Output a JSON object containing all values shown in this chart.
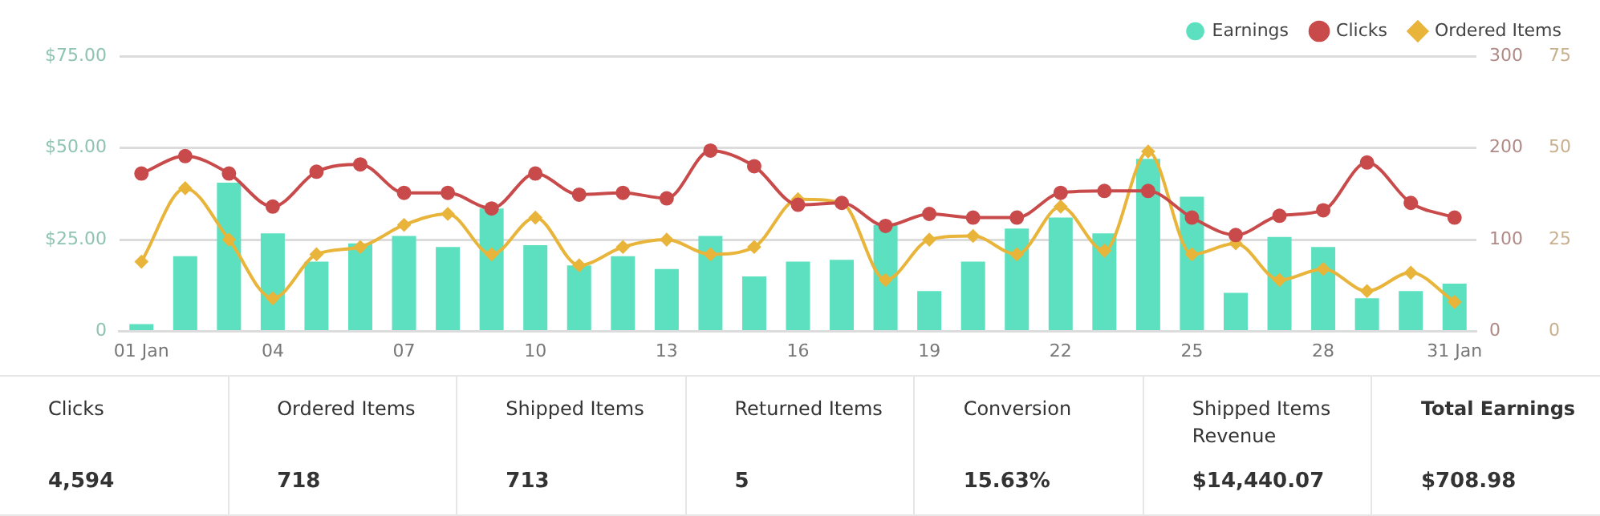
{
  "chart_data": [
    {
      "type": "bar",
      "categories": [
        "01 Jan",
        null,
        null,
        "04",
        null,
        null,
        "07",
        null,
        null,
        "10",
        null,
        null,
        "13",
        null,
        null,
        "16",
        null,
        null,
        "19",
        null,
        null,
        "22",
        null,
        null,
        "25",
        null,
        null,
        "28",
        null,
        null,
        "31 Jan"
      ],
      "series": [
        {
          "name": "Earnings",
          "type": "bar",
          "color": "#5ce0bf",
          "values": [
            2,
            20.5,
            40.5,
            26.7,
            19,
            24,
            26,
            23,
            33.5,
            23.5,
            18,
            20.5,
            17,
            26,
            15,
            19,
            19.5,
            29,
            11,
            19,
            28,
            31,
            26.7,
            47,
            36.7,
            10.5,
            25.7,
            23,
            9,
            11,
            13
          ]
        },
        {
          "name": "Clicks",
          "type": "line",
          "axis": "y2",
          "marker": "circle",
          "color": "#c94a4a",
          "values": [
            172,
            191,
            172,
            136,
            174,
            182,
            151,
            151,
            134,
            172,
            149,
            151,
            145,
            197,
            180,
            138,
            140,
            115,
            128,
            124,
            124,
            151,
            153,
            153,
            124,
            105,
            126,
            132,
            184,
            140,
            124
          ]
        },
        {
          "name": "Ordered Items",
          "type": "line",
          "axis": "y3",
          "marker": "diamond",
          "color": "#e8b43a",
          "values": [
            19,
            39,
            25,
            9,
            21,
            23,
            29,
            32,
            21,
            31,
            18,
            23,
            25,
            21,
            23,
            36,
            35,
            14,
            25,
            26,
            21,
            34,
            22,
            49,
            21,
            24,
            14,
            17,
            11,
            16,
            8
          ]
        }
      ],
      "ylim": [
        0,
        75
      ],
      "yticks": [
        {
          "value": 0,
          "label": "0"
        },
        {
          "value": 25,
          "label": "$25.00"
        },
        {
          "value": 50,
          "label": "$50.00"
        },
        {
          "value": 75,
          "label": "$75.00"
        }
      ],
      "y2lim": [
        0,
        300
      ],
      "y2ticks": [
        0,
        100,
        200,
        300
      ],
      "y3lim": [
        0,
        75
      ],
      "y3ticks": [
        0,
        25,
        50,
        75
      ],
      "grid": "y",
      "legend": "top right"
    },
    {
      "type": "other",
      "categories": [
        "Clicks",
        "Ordered Items",
        "Shipped Items",
        "Returned Items",
        "Conversion",
        "Shipped Items Revenue",
        "Total Earnings"
      ],
      "value_labels": [
        "4,594",
        "718",
        "713",
        "5",
        "15.63%",
        "$14,440.07",
        "$708.98"
      ]
    }
  ]
}
